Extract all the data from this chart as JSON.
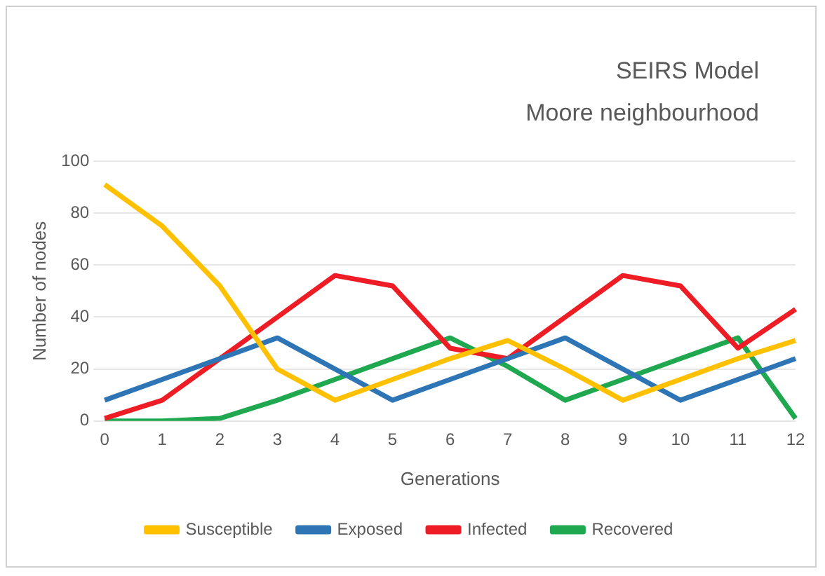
{
  "chart_data": {
    "type": "line",
    "title": "SEIRS Model",
    "subtitle": "Moore neighbourhood",
    "xlabel": "Generations",
    "ylabel": "Number of nodes",
    "categories": [
      "0",
      "1",
      "2",
      "3",
      "4",
      "5",
      "6",
      "7",
      "8",
      "9",
      "10",
      "11",
      "12"
    ],
    "series": [
      {
        "name": "Susceptible",
        "color": "#ffc000",
        "values": [
          91,
          75,
          52,
          20,
          8,
          16,
          24,
          31,
          20,
          8,
          16,
          24,
          31
        ]
      },
      {
        "name": "Exposed",
        "color": "#2e75b6",
        "values": [
          8,
          16,
          24,
          32,
          20,
          8,
          16,
          24,
          32,
          20,
          8,
          16,
          24
        ]
      },
      {
        "name": "Infected",
        "color": "#ee1c25",
        "values": [
          1,
          8,
          24,
          40,
          56,
          52,
          28,
          24,
          40,
          56,
          52,
          28,
          43
        ]
      },
      {
        "name": "Recovered",
        "color": "#1fa84f",
        "values": [
          0,
          0,
          1,
          8,
          16,
          24,
          32,
          21,
          8,
          16,
          24,
          32,
          1
        ]
      }
    ],
    "ylim": [
      0,
      100
    ],
    "yticks": [
      0,
      20,
      40,
      60,
      80,
      100
    ],
    "grid": "y",
    "legend": "bottom",
    "marker": "none",
    "line_style": "solid"
  }
}
